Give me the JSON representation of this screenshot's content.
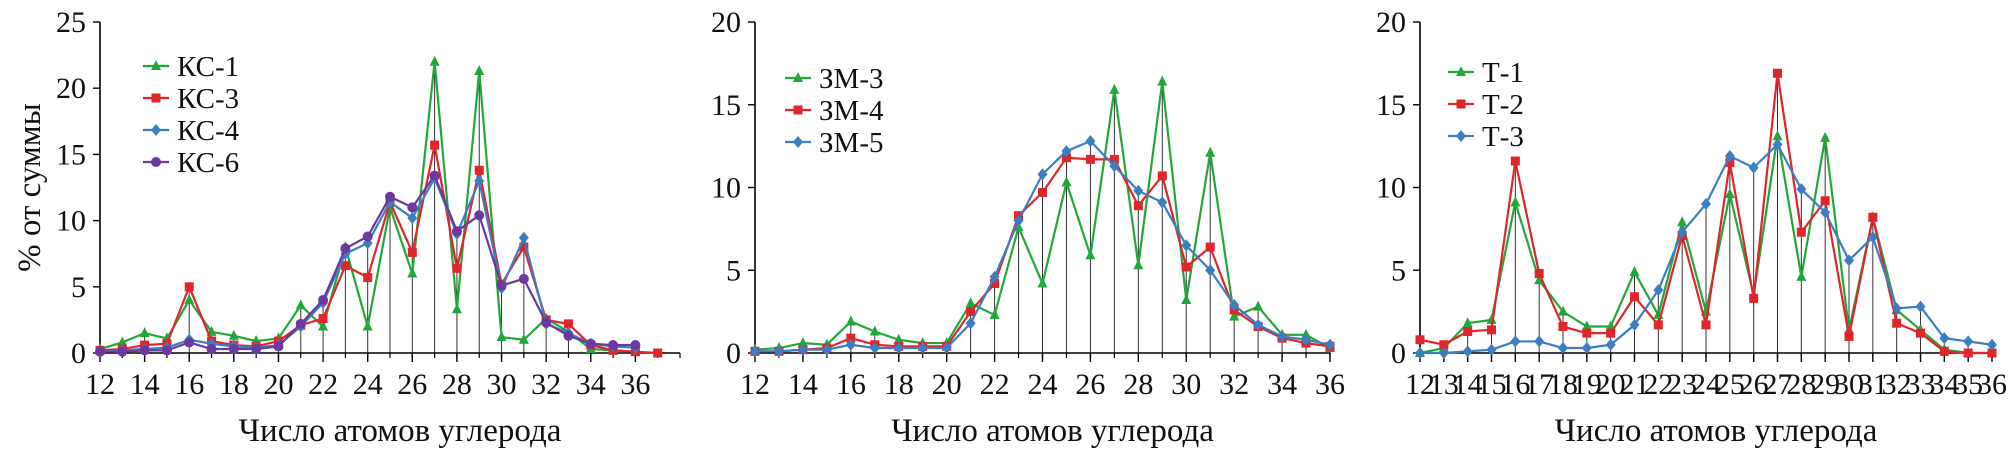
{
  "chart_data": [
    {
      "type": "line",
      "title": "",
      "xlabel": "Число атомов углерода",
      "ylabel": "% от суммы",
      "xlim": [
        12,
        38
      ],
      "ylim": [
        0,
        25
      ],
      "x_ticks": [
        12,
        14,
        16,
        18,
        20,
        22,
        24,
        26,
        28,
        30,
        32,
        34,
        36
      ],
      "y_ticks": [
        0,
        5,
        10,
        15,
        20,
        25
      ],
      "grid": false,
      "legend_position": "top-left",
      "x": [
        12,
        13,
        14,
        15,
        16,
        17,
        18,
        19,
        20,
        21,
        22,
        23,
        24,
        25,
        26,
        27,
        28,
        29,
        30,
        31,
        32,
        33,
        34,
        35,
        36,
        37
      ],
      "series": [
        {
          "name": "КС-1",
          "color": "#22a83a",
          "marker": "triangle",
          "values": [
            0.3,
            0.8,
            1.5,
            1.1,
            4.0,
            1.6,
            1.3,
            0.9,
            1.1,
            3.6,
            2.0,
            8.0,
            2.0,
            11.0,
            6.0,
            22.0,
            3.3,
            21.3,
            1.2,
            1.0,
            2.6,
            1.6,
            0.3,
            0.2,
            0.1,
            null
          ]
        },
        {
          "name": "КС-3",
          "color": "#e0252b",
          "marker": "square",
          "values": [
            0.2,
            0.3,
            0.6,
            0.7,
            5.0,
            0.9,
            0.6,
            0.5,
            0.9,
            2.1,
            2.6,
            6.6,
            5.7,
            11.4,
            7.6,
            15.7,
            6.4,
            13.8,
            5.2,
            8.0,
            2.5,
            2.2,
            0.6,
            0.2,
            0.1,
            0.0
          ]
        },
        {
          "name": "КС-4",
          "color": "#3b7ec2",
          "marker": "diamond",
          "values": [
            0.1,
            0.2,
            0.3,
            0.4,
            1.0,
            0.7,
            0.5,
            0.4,
            0.6,
            2.0,
            3.8,
            7.5,
            8.3,
            11.4,
            10.2,
            13.2,
            9.0,
            13.0,
            4.9,
            8.7,
            2.2,
            1.5,
            0.7,
            0.5,
            0.4,
            null
          ]
        },
        {
          "name": "КС-6",
          "color": "#6b3a9e",
          "marker": "circle",
          "values": [
            0.1,
            0.1,
            0.2,
            0.2,
            0.8,
            0.3,
            0.3,
            0.3,
            0.5,
            2.2,
            4.0,
            7.9,
            8.8,
            11.8,
            11.0,
            13.4,
            9.2,
            10.4,
            5.1,
            5.6,
            2.3,
            1.3,
            0.7,
            0.6,
            0.6,
            null
          ]
        }
      ]
    },
    {
      "type": "line",
      "title": "",
      "xlabel": "Число атомов углерода",
      "ylabel": "",
      "xlim": [
        12,
        36
      ],
      "ylim": [
        0,
        20
      ],
      "x_ticks": [
        12,
        14,
        16,
        18,
        20,
        22,
        24,
        26,
        28,
        30,
        32,
        34,
        36
      ],
      "y_ticks": [
        0,
        5,
        10,
        15,
        20
      ],
      "grid": false,
      "legend_position": "top-left",
      "x": [
        12,
        13,
        14,
        15,
        16,
        17,
        18,
        19,
        20,
        21,
        22,
        23,
        24,
        25,
        26,
        27,
        28,
        29,
        30,
        31,
        32,
        33,
        34,
        35,
        36
      ],
      "series": [
        {
          "name": "ЗМ-3",
          "color": "#22a83a",
          "marker": "triangle",
          "values": [
            0.2,
            0.3,
            0.6,
            0.5,
            1.9,
            1.3,
            0.8,
            0.6,
            0.6,
            3.0,
            2.3,
            7.6,
            4.2,
            10.3,
            5.9,
            15.9,
            5.3,
            16.4,
            3.2,
            12.1,
            2.2,
            2.8,
            1.1,
            1.1,
            0.3
          ]
        },
        {
          "name": "ЗМ-4",
          "color": "#e0252b",
          "marker": "square",
          "values": [
            0.1,
            0.1,
            0.2,
            0.3,
            0.9,
            0.5,
            0.4,
            0.4,
            0.4,
            2.5,
            4.2,
            8.3,
            9.7,
            11.8,
            11.7,
            11.7,
            8.9,
            10.7,
            5.2,
            6.4,
            2.6,
            1.6,
            0.9,
            0.6,
            0.4
          ]
        },
        {
          "name": "ЗМ-5",
          "color": "#3b7ec2",
          "marker": "diamond",
          "values": [
            0.1,
            0.1,
            0.2,
            0.2,
            0.5,
            0.3,
            0.3,
            0.3,
            0.3,
            1.8,
            4.6,
            8.0,
            10.8,
            12.2,
            12.8,
            11.3,
            9.8,
            9.1,
            6.5,
            5.0,
            2.9,
            1.7,
            1.0,
            0.8,
            0.5
          ]
        }
      ]
    },
    {
      "type": "line",
      "title": "",
      "xlabel": "Число атомов углерода",
      "ylabel": "",
      "xlim": [
        12,
        36
      ],
      "ylim": [
        0,
        20
      ],
      "x_ticks": [
        12,
        13,
        14,
        15,
        16,
        17,
        18,
        19,
        20,
        21,
        22,
        23,
        24,
        25,
        26,
        27,
        28,
        29,
        30,
        31,
        32,
        33,
        34,
        35,
        36
      ],
      "y_ticks": [
        0,
        5,
        10,
        15,
        20
      ],
      "grid": false,
      "legend_position": "top-left",
      "x": [
        12,
        13,
        14,
        15,
        16,
        17,
        18,
        19,
        20,
        21,
        22,
        23,
        24,
        25,
        26,
        27,
        28,
        29,
        30,
        31,
        32,
        33,
        34,
        35,
        36
      ],
      "series": [
        {
          "name": "Т-1",
          "color": "#22a83a",
          "marker": "triangle",
          "values": [
            0.0,
            0.3,
            1.8,
            2.0,
            9.1,
            4.4,
            2.5,
            1.6,
            1.6,
            4.9,
            2.3,
            7.9,
            2.5,
            9.6,
            3.5,
            13.1,
            4.6,
            13.0,
            1.4,
            8.2,
            2.6,
            1.4,
            0.2,
            0.0,
            0.0
          ]
        },
        {
          "name": "Т-2",
          "color": "#e0252b",
          "marker": "square",
          "values": [
            0.8,
            0.5,
            1.3,
            1.4,
            11.6,
            4.8,
            1.6,
            1.2,
            1.2,
            3.4,
            1.7,
            7.1,
            1.7,
            11.5,
            3.3,
            16.9,
            7.3,
            9.2,
            1.0,
            8.2,
            1.8,
            1.2,
            0.1,
            0.0,
            0.0
          ]
        },
        {
          "name": "Т-3",
          "color": "#3b7ec2",
          "marker": "diamond",
          "values": [
            0.0,
            0.0,
            0.1,
            0.2,
            0.7,
            0.7,
            0.3,
            0.3,
            0.5,
            1.7,
            3.8,
            7.3,
            9.0,
            11.9,
            11.2,
            12.6,
            9.9,
            8.5,
            5.6,
            7.0,
            2.7,
            2.8,
            0.9,
            0.7,
            0.5
          ]
        }
      ]
    }
  ]
}
